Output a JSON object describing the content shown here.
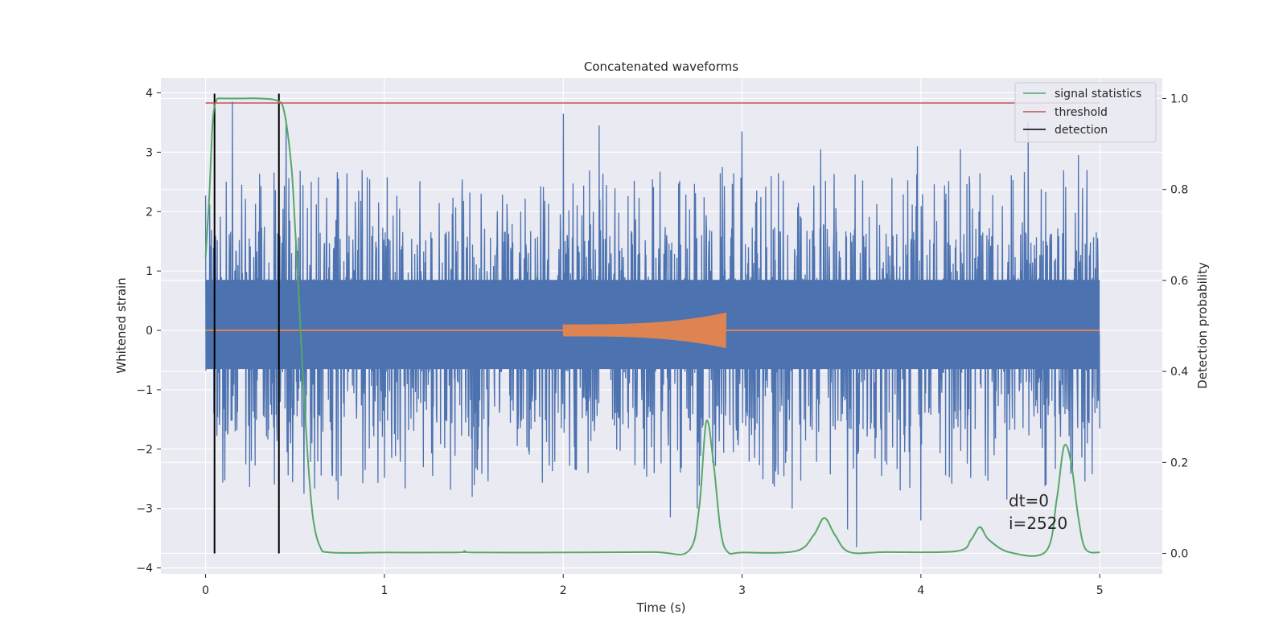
{
  "chart_data": {
    "type": "line",
    "title": "Concatenated waveforms",
    "xlabel": "Time (s)",
    "ylabel": "Whitened strain",
    "y2label": "Detection probability",
    "xlim": [
      -0.25,
      5.35
    ],
    "ylim": [
      -4.1,
      4.25
    ],
    "y2lim": [
      -0.045,
      1.045
    ],
    "xticks": [
      0,
      1,
      2,
      3,
      4,
      5
    ],
    "yticks": [
      -4,
      -3,
      -2,
      -1,
      0,
      1,
      2,
      3,
      4
    ],
    "y2ticks": [
      0.0,
      0.2,
      0.4,
      0.6,
      0.8,
      1.0
    ],
    "grid": true,
    "legend_position": "top-right",
    "colors": {
      "noise": "#4c72b0",
      "injected": "#dd8452",
      "signal_statistics": "#55a868",
      "threshold": "#c44e52",
      "detection": "#000000",
      "axes_bg": "#eaeaf2",
      "grid": "#ffffff"
    },
    "noise": {
      "t_range": [
        0,
        5
      ],
      "band": [
        -0.65,
        0.85
      ],
      "spikes": [
        [
          0.15,
          3.85
        ],
        [
          0.05,
          -2.5
        ],
        [
          0.45,
          3.55
        ],
        [
          0.55,
          -2.75
        ],
        [
          0.74,
          -2.85
        ],
        [
          1.27,
          -2.45
        ],
        [
          1.49,
          -2.8
        ],
        [
          2.0,
          3.65
        ],
        [
          2.2,
          3.45
        ],
        [
          2.6,
          -3.15
        ],
        [
          2.75,
          -3.0
        ],
        [
          2.89,
          2.75
        ],
        [
          3.0,
          3.35
        ],
        [
          3.07,
          -2.15
        ],
        [
          3.28,
          -3.0
        ],
        [
          3.44,
          3.05
        ],
        [
          3.59,
          -3.35
        ],
        [
          3.64,
          -3.65
        ],
        [
          3.98,
          3.1
        ],
        [
          4.0,
          -3.2
        ],
        [
          4.22,
          3.05
        ],
        [
          4.48,
          -2.85
        ],
        [
          4.6,
          3.5
        ],
        [
          4.7,
          -2.6
        ],
        [
          4.88,
          2.95
        ],
        [
          4.93,
          -1.9
        ]
      ]
    },
    "injected_signal": {
      "start": 2.0,
      "end": 2.91,
      "amp_start": 0.1,
      "amp_end": 0.3
    },
    "series": [
      {
        "name": "signal statistics",
        "x": [
          0,
          0.02,
          0.04,
          0.06,
          0.08,
          0.1,
          0.2,
          0.3,
          0.4,
          0.44,
          0.48,
          0.5,
          0.52,
          0.54,
          0.57,
          0.6,
          0.64,
          0.7,
          1.0,
          1.4,
          1.45,
          1.5,
          2.0,
          2.5,
          2.7,
          2.76,
          2.8,
          2.84,
          2.88,
          2.92,
          3.0,
          3.3,
          3.4,
          3.46,
          3.52,
          3.6,
          3.8,
          4.2,
          4.28,
          4.33,
          4.38,
          4.5,
          4.7,
          4.76,
          4.8,
          4.84,
          4.88,
          4.92,
          5.0
        ],
        "y": [
          0.65,
          0.78,
          0.95,
          0.995,
          1.0,
          1.0,
          1.0,
          1.0,
          0.995,
          0.97,
          0.85,
          0.72,
          0.58,
          0.42,
          0.22,
          0.08,
          0.015,
          0.002,
          0.002,
          0.002,
          0.005,
          0.002,
          0.002,
          0.003,
          0.005,
          0.1,
          0.29,
          0.2,
          0.05,
          0.003,
          0.002,
          0.005,
          0.04,
          0.078,
          0.04,
          0.003,
          0.003,
          0.005,
          0.03,
          0.058,
          0.03,
          0.002,
          0.005,
          0.12,
          0.235,
          0.2,
          0.08,
          0.01,
          0.002
        ]
      },
      {
        "name": "threshold",
        "x": [
          0,
          5
        ],
        "y": [
          0.99,
          0.99
        ]
      }
    ],
    "detections": [
      0.05,
      0.41
    ],
    "legend": [
      "signal statistics",
      "threshold",
      "detection"
    ],
    "annotation": {
      "line1": "dt=0",
      "line2": "i=2520",
      "x": 4.5,
      "y": -3.0
    }
  }
}
